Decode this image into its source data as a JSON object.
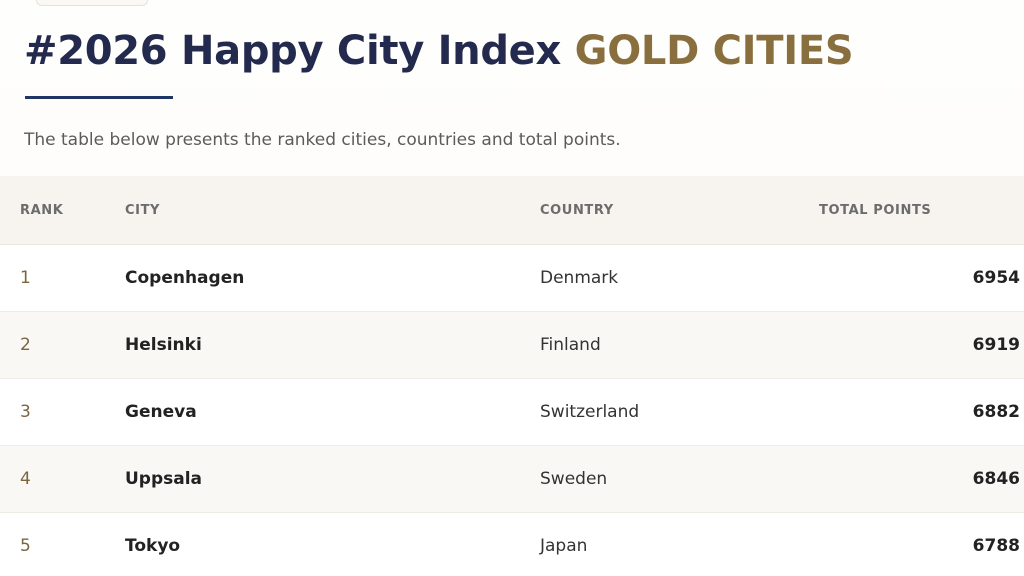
{
  "header": {
    "title_part1": "#2026 Happy City Index",
    "title_part2": "GOLD CITIES",
    "subtitle": "The table below presents the ranked cities, countries and total points."
  },
  "table": {
    "columns": {
      "rank": "RANK",
      "city": "CITY",
      "country": "COUNTRY",
      "total_points": "TOTAL POINTS"
    },
    "rows": [
      {
        "rank": "1",
        "city": "Copenhagen",
        "country": "Denmark",
        "points": "6954"
      },
      {
        "rank": "2",
        "city": "Helsinki",
        "country": "Finland",
        "points": "6919"
      },
      {
        "rank": "3",
        "city": "Geneva",
        "country": "Switzerland",
        "points": "6882"
      },
      {
        "rank": "4",
        "city": "Uppsala",
        "country": "Sweden",
        "points": "6846"
      },
      {
        "rank": "5",
        "city": "Tokyo",
        "country": "Japan",
        "points": "6788"
      }
    ]
  },
  "colors": {
    "title_navy": "#232a4d",
    "title_gold": "#8a6f3e",
    "rule_blue": "#1f3565"
  }
}
